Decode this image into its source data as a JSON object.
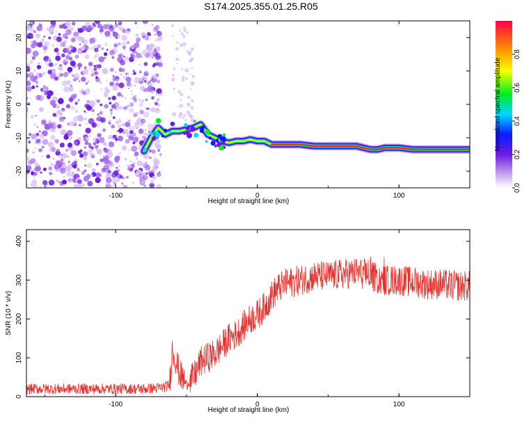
{
  "title": "S174.2025.355.01.25.R05",
  "colors": {
    "trace": "#e8302c",
    "scatter": "#8a2be2",
    "axis": "#000000"
  },
  "chart_data": [
    {
      "type": "heatmap",
      "xlabel": "Height of straight line (km)",
      "ylabel": "Frequency (Hz)",
      "xlim": [
        -163,
        150
      ],
      "ylim": [
        -25,
        25
      ],
      "xticks": [
        -100,
        0,
        100
      ],
      "yticks": [
        -20,
        -10,
        0,
        10,
        20
      ],
      "ridge": {
        "x": [
          -80,
          -75,
          -70,
          -65,
          -60,
          -55,
          -50,
          -45,
          -40,
          -35,
          -30,
          -25,
          -20,
          -15,
          -10,
          -5,
          0,
          5,
          10,
          20,
          30,
          40,
          50,
          60,
          70,
          75,
          80,
          85,
          90,
          95,
          100,
          110,
          120,
          130,
          150
        ],
        "y": [
          -14,
          -10,
          -7,
          -9,
          -8,
          -8,
          -7.5,
          -7,
          -6,
          -9,
          -10,
          -11,
          -11.5,
          -11,
          -11,
          -10.5,
          -11,
          -11,
          -12,
          -12,
          -12,
          -12.5,
          -12.5,
          -12.5,
          -12.5,
          -13,
          -13.5,
          -13.5,
          -13,
          -13,
          -13,
          -13.5,
          -13.5,
          -13.5,
          -13.5
        ]
      },
      "colorbar": {
        "label": "Normalized spectral amplitude",
        "ticks": [
          "0.0",
          "0.2",
          "0.4",
          "0.6",
          "0.8"
        ],
        "tick_values": [
          0.0,
          0.2,
          0.4,
          0.6,
          0.8
        ],
        "range": [
          0,
          1
        ]
      }
    },
    {
      "type": "line",
      "xlabel": "Height of straight line (km)",
      "ylabel": "SNR (10 * v/v)",
      "xlim": [
        -163,
        150
      ],
      "ylim": [
        0,
        430
      ],
      "xticks": [
        -100,
        0,
        100
      ],
      "yticks": [
        0,
        100,
        200,
        300,
        400
      ],
      "series": [
        {
          "name": "SNR",
          "x": [
            -163,
            -140,
            -120,
            -100,
            -80,
            -70,
            -65,
            -62,
            -60,
            -58,
            -55,
            -50,
            -45,
            -40,
            -35,
            -30,
            -25,
            -20,
            -15,
            -10,
            -5,
            0,
            5,
            10,
            15,
            20,
            30,
            40,
            50,
            60,
            70,
            80,
            90,
            100,
            110,
            120,
            130,
            140,
            150
          ],
          "values": [
            20,
            20,
            20,
            20,
            20,
            22,
            25,
            30,
            120,
            100,
            60,
            30,
            50,
            90,
            100,
            110,
            130,
            150,
            160,
            180,
            200,
            210,
            230,
            260,
            280,
            290,
            300,
            310,
            310,
            315,
            320,
            310,
            300,
            300,
            295,
            290,
            290,
            285,
            285
          ]
        }
      ],
      "noise_amplitude": 40
    }
  ]
}
